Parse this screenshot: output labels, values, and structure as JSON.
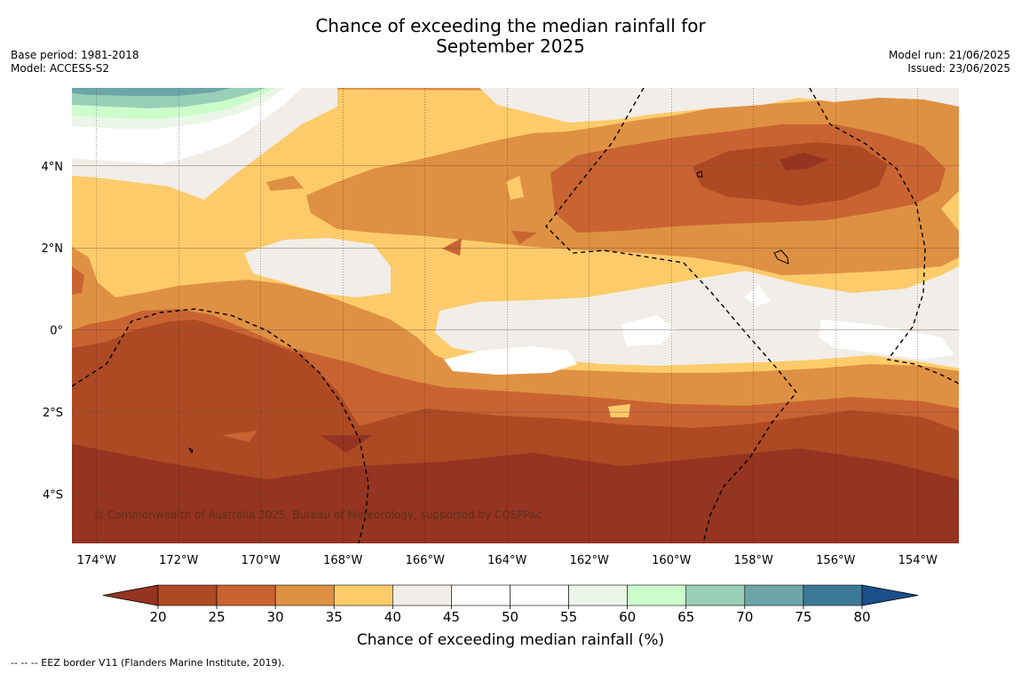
{
  "title_line1": "Chance of exceeding the median rainfall for",
  "title_line2": "September 2025",
  "meta": {
    "base_period": "Base period: 1981-2018",
    "model": "Model: ACCESS-S2",
    "model_run": "Model run: 21/06/2025",
    "issued": "Issued: 23/06/2025"
  },
  "map": {
    "lon_range": [
      -174.6,
      -153.0
    ],
    "lat_range": [
      -5.2,
      5.9
    ],
    "lon_ticks": [
      {
        "value": -174,
        "label": "174°W"
      },
      {
        "value": -172,
        "label": "172°W"
      },
      {
        "value": -170,
        "label": "170°W"
      },
      {
        "value": -168,
        "label": "168°W"
      },
      {
        "value": -166,
        "label": "166°W"
      },
      {
        "value": -164,
        "label": "164°W"
      },
      {
        "value": -162,
        "label": "162°W"
      },
      {
        "value": -160,
        "label": "160°W"
      },
      {
        "value": -158,
        "label": "158°W"
      },
      {
        "value": -156,
        "label": "156°W"
      },
      {
        "value": -154,
        "label": "154°W"
      }
    ],
    "lat_ticks": [
      {
        "value": 4,
        "label": "4°N"
      },
      {
        "value": 2,
        "label": "2°N"
      },
      {
        "value": 0,
        "label": "0°"
      },
      {
        "value": -2,
        "label": "2°S"
      },
      {
        "value": -4,
        "label": "4°S"
      }
    ],
    "copyright": "© Commonwealth of Australia 2025, Bureau of Meteorology, supported by COSPPac"
  },
  "colorbar": {
    "label": "Chance of exceeding median rainfall (%)",
    "ticks": [
      "20",
      "25",
      "30",
      "35",
      "40",
      "45",
      "50",
      "55",
      "60",
      "65",
      "70",
      "75",
      "80"
    ],
    "under_color": "#953420",
    "over_color": "#1a4f8a",
    "colors": [
      "#ad4a24",
      "#c96432",
      "#df9143",
      "#fdcb6a",
      "#f1ede8",
      "#ffffff",
      "#ffffff",
      "#ecf6e8",
      "#cdfccb",
      "#99cfb8",
      "#6ea6a8",
      "#3c7997"
    ]
  },
  "footnote": "--  --  -- EEZ border V11 (Flanders Marine Institute, 2019)."
}
